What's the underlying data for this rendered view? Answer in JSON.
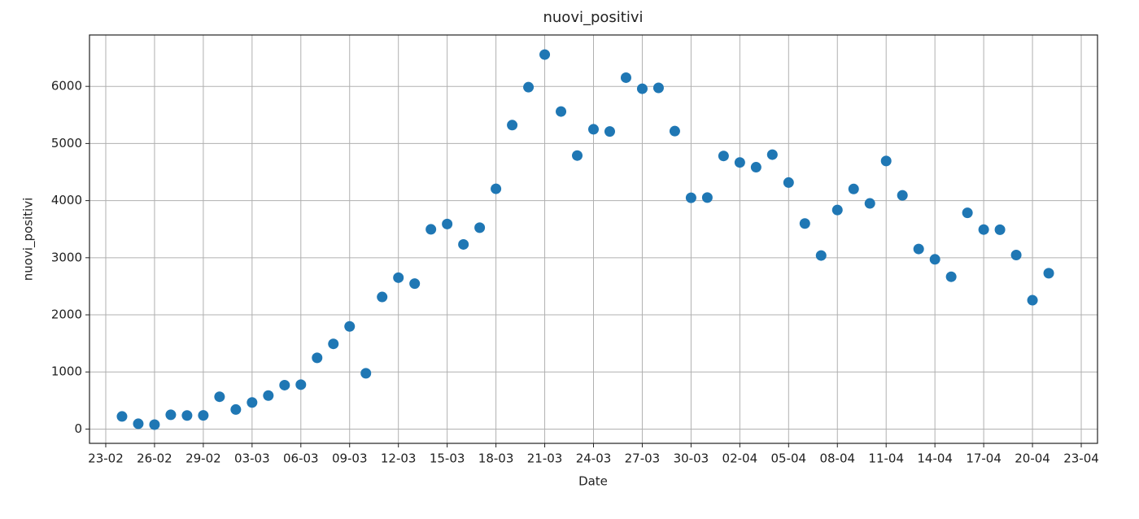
{
  "chart_data": {
    "type": "scatter",
    "title": "nuovi_positivi",
    "x_label": "Date",
    "y_label": "nuovi_positivi",
    "x": [
      "24-02",
      "25-02",
      "26-02",
      "27-02",
      "28-02",
      "29-02",
      "01-03",
      "02-03",
      "03-03",
      "04-03",
      "05-03",
      "06-03",
      "07-03",
      "08-03",
      "09-03",
      "10-03",
      "11-03",
      "12-03",
      "13-03",
      "14-03",
      "15-03",
      "16-03",
      "17-03",
      "18-03",
      "19-03",
      "20-03",
      "21-03",
      "22-03",
      "23-03",
      "24-03",
      "25-03",
      "26-03",
      "27-03",
      "28-03",
      "29-03",
      "30-03",
      "31-03",
      "01-04",
      "02-04",
      "03-04",
      "04-04",
      "05-04",
      "06-04",
      "07-04",
      "08-04",
      "09-04",
      "10-04",
      "11-04",
      "12-04",
      "13-04",
      "14-04",
      "15-04",
      "16-04",
      "17-04",
      "18-04",
      "19-04",
      "20-04",
      "21-04"
    ],
    "series": [
      {
        "name": "nuovi_positivi",
        "color": "#1f77b4",
        "values": [
          221,
          93,
          78,
          250,
          238,
          240,
          566,
          342,
          466,
          587,
          769,
          778,
          1247,
          1492,
          1797,
          977,
          2313,
          2651,
          2547,
          3497,
          3590,
          3233,
          3526,
          4207,
          5322,
          5986,
          6557,
          5560,
          4789,
          5249,
          5210,
          6153,
          5959,
          5974,
          5217,
          4050,
          4053,
          4782,
          4668,
          4585,
          4805,
          4316,
          3599,
          3039,
          3836,
          4204,
          3951,
          4694,
          4092,
          3153,
          2972,
          2667,
          3786,
          3493,
          3491,
          3047,
          2256,
          2729
        ]
      }
    ],
    "xlim": [
      "22-02",
      "24-04"
    ],
    "xticks": [
      "23-02",
      "26-02",
      "29-02",
      "03-03",
      "06-03",
      "09-03",
      "12-03",
      "15-03",
      "18-03",
      "21-03",
      "24-03",
      "27-03",
      "30-03",
      "02-04",
      "05-04",
      "08-04",
      "11-04",
      "14-04",
      "17-04",
      "20-04",
      "23-04"
    ],
    "ylim": [
      -250,
      6900
    ],
    "yticks": [
      0,
      1000,
      2000,
      3000,
      4000,
      5000,
      6000
    ],
    "grid": true
  }
}
